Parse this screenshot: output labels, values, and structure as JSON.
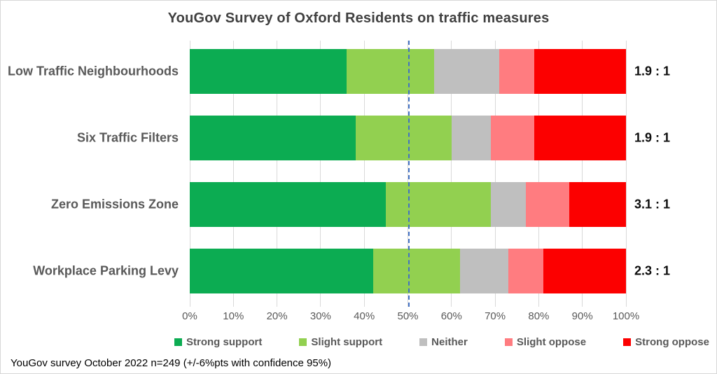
{
  "footer": "YouGov survey October 2022 n=249 (+/-6%pts with confidence 95%)",
  "colors": {
    "strong_support": "#0cac52",
    "slight_support": "#92d050",
    "neither": "#bfbfbf",
    "slight_oppose": "#ff7c80",
    "strong_oppose": "#fc0000",
    "reference_line": "#4472c4",
    "gridline": "#d9d9d9",
    "title_text": "#404040",
    "axis_text": "#595959",
    "ratio_text": "#0d0d0d"
  },
  "chart_data": {
    "type": "bar",
    "orientation": "horizontal",
    "stacked": true,
    "grid": true,
    "legend_position": "bottom",
    "title": "YouGov Survey of Oxford Residents on traffic measures",
    "categories": [
      "Low Traffic Neighbourhoods",
      "Six Traffic Filters",
      "Zero Emissions Zone",
      "Workplace Parking Levy"
    ],
    "series": [
      {
        "name": "Strong support",
        "color": "#0cac52",
        "values": [
          36,
          38,
          45,
          42
        ]
      },
      {
        "name": "Slight support",
        "color": "#92d050",
        "values": [
          20,
          22,
          24,
          20
        ]
      },
      {
        "name": "Neither",
        "color": "#bfbfbf",
        "values": [
          15,
          9,
          8,
          11
        ]
      },
      {
        "name": "Slight oppose",
        "color": "#ff7c80",
        "values": [
          8,
          10,
          10,
          8
        ]
      },
      {
        "name": "Strong oppose",
        "color": "#fc0000",
        "values": [
          21,
          21,
          13,
          19
        ]
      }
    ],
    "ratio_labels": [
      "1.9 : 1",
      "1.9 : 1",
      "3.1 : 1",
      "2.3 : 1"
    ],
    "x_ticks": [
      "0%",
      "10%",
      "20%",
      "30%",
      "40%",
      "50%",
      "60%",
      "70%",
      "80%",
      "90%",
      "100%"
    ],
    "xlim": [
      0,
      100
    ],
    "reference_line_x": 50
  }
}
